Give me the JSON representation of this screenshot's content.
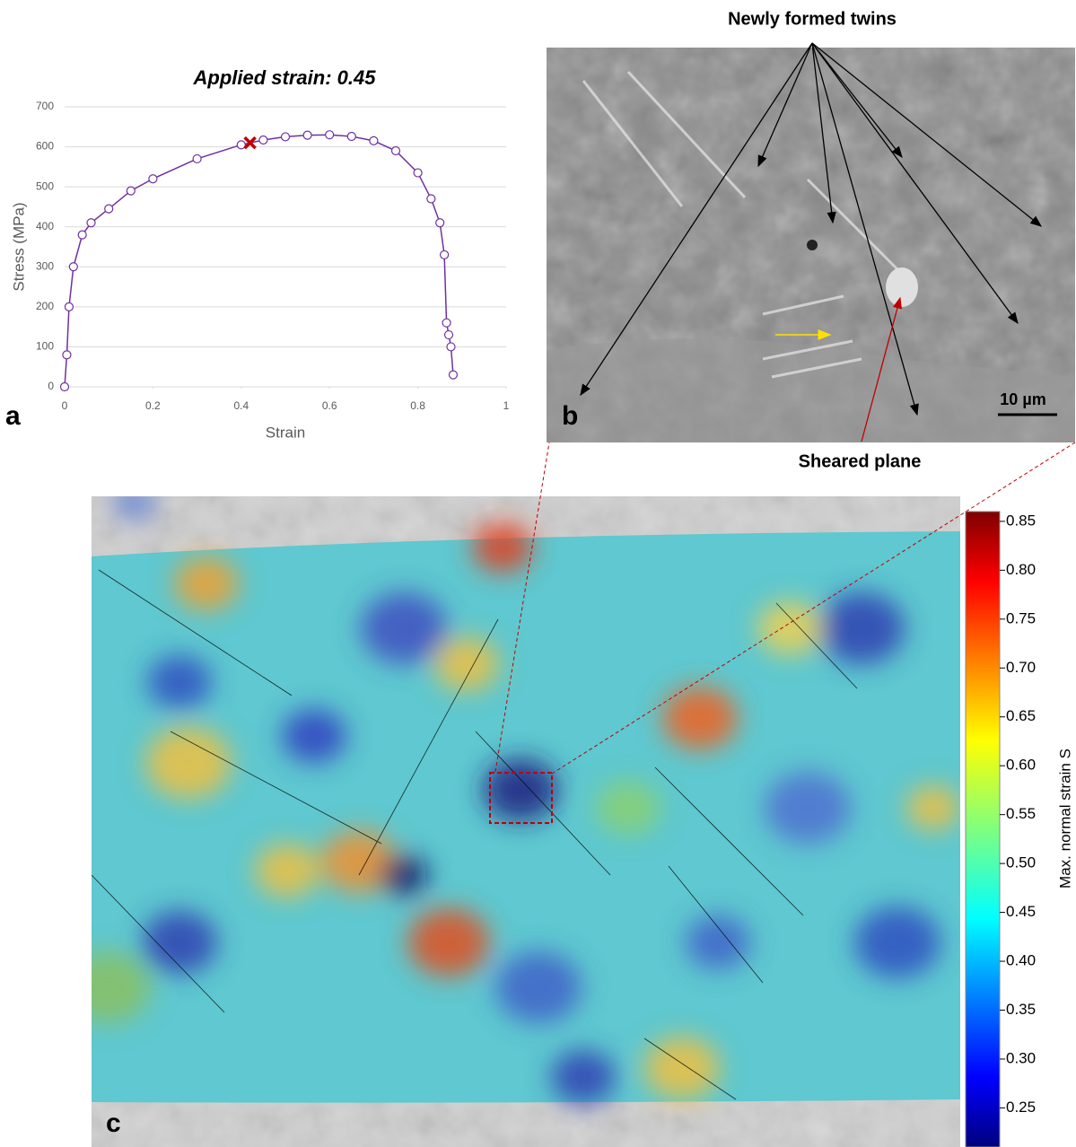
{
  "chart_data": [
    {
      "type": "line",
      "title": "Applied strain: 0.45",
      "panel_label": "a",
      "xlabel": "Strain",
      "ylabel": "Stress (MPa)",
      "x": [
        0,
        0.005,
        0.01,
        0.02,
        0.04,
        0.06,
        0.1,
        0.15,
        0.2,
        0.3,
        0.4,
        0.45,
        0.5,
        0.55,
        0.6,
        0.65,
        0.7,
        0.75,
        0.8,
        0.83,
        0.85,
        0.86,
        0.865,
        0.87,
        0.875,
        0.88
      ],
      "y": [
        0,
        80,
        200,
        300,
        380,
        410,
        445,
        490,
        520,
        570,
        605,
        617,
        625,
        629,
        630,
        626,
        615,
        590,
        535,
        470,
        410,
        330,
        160,
        130,
        100,
        30
      ],
      "color": "#7030a0",
      "highlight": {
        "x": 0.42,
        "y": 610,
        "color": "#c00000"
      },
      "xlim": [
        0,
        1
      ],
      "xticks": [
        0,
        0.2,
        0.4,
        0.6,
        0.8,
        1
      ],
      "ylim": [
        0,
        700
      ],
      "yticks": [
        0,
        100,
        200,
        300,
        400,
        500,
        600,
        700
      ],
      "grid": true
    },
    {
      "type": "heatmap",
      "panel_label": "c",
      "colorbar_label": "Max. normal strain S",
      "colormap": "jet",
      "clim": [
        0.21,
        0.86
      ],
      "cticks": [
        0.25,
        {
          "value": 0.3,
          "label": "0.30"
        },
        0.35,
        {
          "value": 0.4,
          "label": "0.40"
        },
        0.45,
        {
          "value": 0.5,
          "label": "0.50"
        },
        0.55,
        {
          "value": 0.6,
          "label": "0.60"
        },
        0.65,
        {
          "value": 0.7,
          "label": "0.70"
        },
        0.75,
        {
          "value": 0.8,
          "label": "0.80"
        },
        0.85
      ]
    }
  ],
  "panel_b": {
    "label": "b",
    "title": "Newly formed twins",
    "annotation": "Sheared plane",
    "scale_bar": "10 µm"
  }
}
